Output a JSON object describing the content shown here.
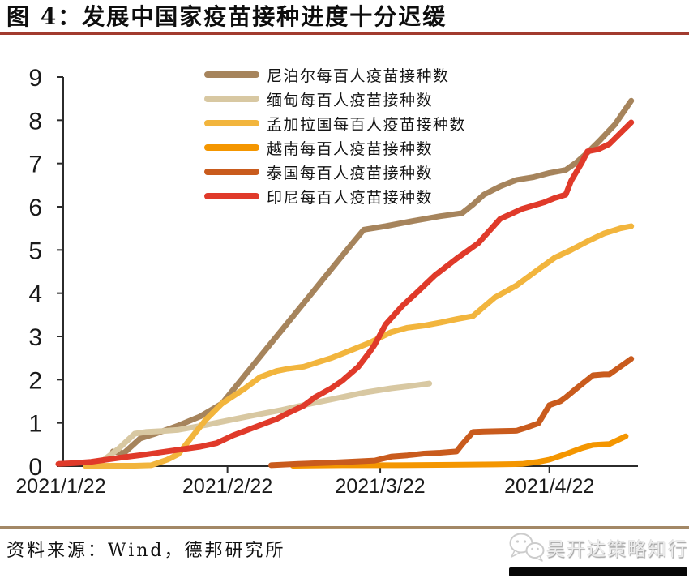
{
  "header": {
    "title": "图 4：发展中国家疫苗接种进度十分迟缓"
  },
  "chart_data": {
    "type": "line",
    "title": "发展中国家疫苗接种进度十分迟缓",
    "legend_position": "top",
    "grid": false,
    "x_axis": {
      "unit": "date",
      "tick_labels": [
        "2021/1/22",
        "2021/2/22",
        "2021/3/22",
        "2021/4/22"
      ],
      "tick_days": [
        0,
        31,
        59,
        90
      ],
      "range_days": [
        0,
        106
      ]
    },
    "y_axis": {
      "min": 0,
      "max": 9,
      "step": 1,
      "ticks": [
        0,
        1,
        2,
        3,
        4,
        5,
        6,
        7,
        8,
        9
      ]
    },
    "series": [
      {
        "name": "尼泊尔每百人疫苗接种数",
        "color": "#A6845C",
        "points": [
          [
            10,
            0.34
          ],
          [
            12,
            0.3
          ],
          [
            15,
            0.64
          ],
          [
            18,
            0.76
          ],
          [
            22,
            0.94
          ],
          [
            26,
            1.15
          ],
          [
            30,
            1.45
          ],
          [
            34,
            2.07
          ],
          [
            38,
            2.69
          ],
          [
            42,
            3.31
          ],
          [
            46,
            3.93
          ],
          [
            50,
            4.55
          ],
          [
            54,
            5.17
          ],
          [
            56,
            5.47
          ],
          [
            60,
            5.55
          ],
          [
            65,
            5.67
          ],
          [
            70,
            5.78
          ],
          [
            74,
            5.85
          ],
          [
            76,
            6.05
          ],
          [
            78,
            6.28
          ],
          [
            81,
            6.47
          ],
          [
            84,
            6.62
          ],
          [
            87,
            6.68
          ],
          [
            90,
            6.78
          ],
          [
            93,
            6.85
          ],
          [
            95,
            7.03
          ],
          [
            97,
            7.25
          ],
          [
            99,
            7.5
          ],
          [
            102,
            7.9
          ],
          [
            105,
            8.45
          ]
        ]
      },
      {
        "name": "缅甸每百人疫苗接种数",
        "color": "#D8C8A2",
        "points": [
          [
            8,
            0.11
          ],
          [
            11,
            0.4
          ],
          [
            14,
            0.75
          ],
          [
            16,
            0.79
          ],
          [
            19,
            0.81
          ],
          [
            22,
            0.84
          ],
          [
            27,
            0.95
          ],
          [
            32,
            1.08
          ],
          [
            36,
            1.18
          ],
          [
            41,
            1.3
          ],
          [
            46,
            1.44
          ],
          [
            51,
            1.57
          ],
          [
            56,
            1.7
          ],
          [
            61,
            1.8
          ],
          [
            65,
            1.86
          ],
          [
            68,
            1.91
          ]
        ]
      },
      {
        "name": "孟加拉国每百人疫苗接种数",
        "color": "#F2B53D",
        "points": [
          [
            5,
            0
          ],
          [
            10,
            0.01
          ],
          [
            14,
            0.01
          ],
          [
            17,
            0.02
          ],
          [
            20,
            0.15
          ],
          [
            22,
            0.28
          ],
          [
            24,
            0.6
          ],
          [
            27,
            1.07
          ],
          [
            30,
            1.45
          ],
          [
            34,
            1.78
          ],
          [
            37,
            2.06
          ],
          [
            40,
            2.2
          ],
          [
            42,
            2.25
          ],
          [
            45,
            2.3
          ],
          [
            48,
            2.42
          ],
          [
            50,
            2.5
          ],
          [
            53,
            2.65
          ],
          [
            57,
            2.85
          ],
          [
            61,
            3.1
          ],
          [
            64,
            3.2
          ],
          [
            67,
            3.25
          ],
          [
            70,
            3.32
          ],
          [
            73,
            3.4
          ],
          [
            76,
            3.47
          ],
          [
            80,
            3.9
          ],
          [
            84,
            4.18
          ],
          [
            88,
            4.55
          ],
          [
            91,
            4.82
          ],
          [
            94,
            5.0
          ],
          [
            97,
            5.2
          ],
          [
            100,
            5.38
          ],
          [
            103,
            5.5
          ],
          [
            105,
            5.55
          ]
        ]
      },
      {
        "name": "越南每百人疫苗接种数",
        "color": "#F49600",
        "points": [
          [
            43,
            0.01
          ],
          [
            52,
            0.02
          ],
          [
            62,
            0.02
          ],
          [
            72,
            0.03
          ],
          [
            80,
            0.04
          ],
          [
            85,
            0.05
          ],
          [
            88,
            0.1
          ],
          [
            90,
            0.15
          ],
          [
            93,
            0.28
          ],
          [
            96,
            0.42
          ],
          [
            98,
            0.49
          ],
          [
            101,
            0.51
          ],
          [
            104,
            0.69
          ]
        ]
      },
      {
        "name": "泰国每百人疫苗接种数",
        "color": "#C95B1D",
        "points": [
          [
            39,
            0.02
          ],
          [
            44,
            0.05
          ],
          [
            50,
            0.08
          ],
          [
            55,
            0.11
          ],
          [
            58,
            0.13
          ],
          [
            61,
            0.22
          ],
          [
            64,
            0.25
          ],
          [
            67,
            0.29
          ],
          [
            70,
            0.31
          ],
          [
            73,
            0.34
          ],
          [
            74,
            0.5
          ],
          [
            76,
            0.79
          ],
          [
            78,
            0.8
          ],
          [
            81,
            0.81
          ],
          [
            84,
            0.82
          ],
          [
            86,
            0.9
          ],
          [
            88,
            0.99
          ],
          [
            89,
            1.2
          ],
          [
            90,
            1.41
          ],
          [
            92,
            1.5
          ],
          [
            93,
            1.59
          ],
          [
            95,
            1.8
          ],
          [
            97,
            2.0
          ],
          [
            98,
            2.1
          ],
          [
            100,
            2.12
          ],
          [
            101,
            2.12
          ],
          [
            103,
            2.3
          ],
          [
            105,
            2.48
          ]
        ]
      },
      {
        "name": "印尼每百人疫苗接种数",
        "color": "#E03A2A",
        "points": [
          [
            0,
            0.05
          ],
          [
            3,
            0.07
          ],
          [
            6,
            0.1
          ],
          [
            11,
            0.19
          ],
          [
            16,
            0.27
          ],
          [
            21,
            0.36
          ],
          [
            26,
            0.45
          ],
          [
            29,
            0.53
          ],
          [
            32,
            0.71
          ],
          [
            36,
            0.9
          ],
          [
            40,
            1.09
          ],
          [
            42,
            1.22
          ],
          [
            45,
            1.4
          ],
          [
            47,
            1.59
          ],
          [
            50,
            1.8
          ],
          [
            52,
            1.97
          ],
          [
            55,
            2.3
          ],
          [
            57,
            2.63
          ],
          [
            58,
            2.81
          ],
          [
            60,
            3.28
          ],
          [
            63,
            3.7
          ],
          [
            66,
            4.05
          ],
          [
            69,
            4.41
          ],
          [
            73,
            4.8
          ],
          [
            77,
            5.16
          ],
          [
            81,
            5.72
          ],
          [
            85,
            5.95
          ],
          [
            89,
            6.1
          ],
          [
            91,
            6.2
          ],
          [
            93,
            6.28
          ],
          [
            94,
            6.6
          ],
          [
            96,
            7.03
          ],
          [
            97,
            7.28
          ],
          [
            99,
            7.33
          ],
          [
            101,
            7.45
          ],
          [
            103,
            7.7
          ],
          [
            105,
            7.95
          ]
        ]
      }
    ]
  },
  "footer": {
    "source": "资料来源：Wind，德邦研究所",
    "watermark": "吴开达策略知行"
  },
  "colors": {
    "title_rule": "#A23B2F",
    "footer_rule": "#A38866",
    "axis": "#2b2b2b",
    "black_bar": "#070707"
  }
}
